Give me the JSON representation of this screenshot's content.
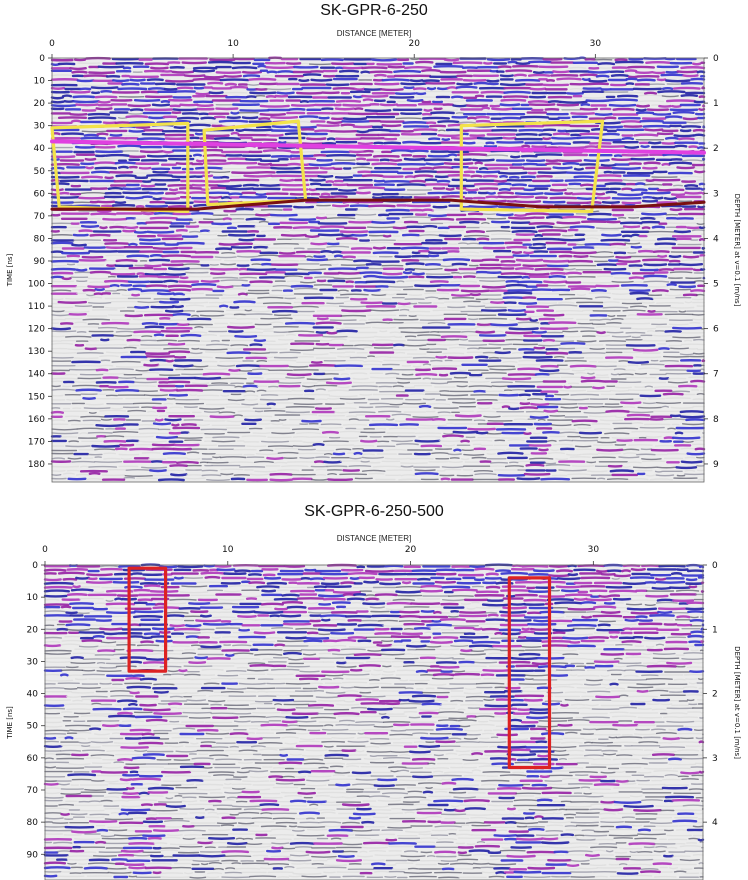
{
  "chart_data": [
    {
      "type": "heatmap",
      "title": "SK-GPR-6-250",
      "xlabel": "DISTANCE [METER]",
      "ylabel": "TIME [ns]",
      "y2label": "DEPTH [METER] at v=0.1 [m/ns]",
      "xlim": [
        0,
        36
      ],
      "ylim": [
        188,
        0
      ],
      "y2lim": [
        9.4,
        0
      ],
      "xticks": [
        0,
        10,
        20,
        30
      ],
      "yticks": [
        0,
        10,
        20,
        30,
        40,
        50,
        60,
        70,
        80,
        90,
        100,
        110,
        120,
        130,
        140,
        150,
        160,
        170,
        180
      ],
      "y2ticks": [
        0,
        1,
        2,
        3,
        4,
        5,
        6,
        7,
        8,
        9
      ],
      "annotations": [
        {
          "shape": "polygon",
          "color": "#f2e24a",
          "points": [
            [
              0,
              31
            ],
            [
              7.5,
              29
            ],
            [
              7.5,
              68
            ],
            [
              0.4,
              66
            ]
          ]
        },
        {
          "shape": "polygon",
          "color": "#f2e24a",
          "points": [
            [
              8.4,
              32
            ],
            [
              13.6,
              28
            ],
            [
              14.0,
              63
            ],
            [
              8.6,
              65
            ]
          ]
        },
        {
          "shape": "polygon",
          "color": "#f2e24a",
          "points": [
            [
              22.6,
              30
            ],
            [
              30.4,
              28
            ],
            [
              29.8,
              68
            ],
            [
              22.6,
              67
            ]
          ]
        },
        {
          "shape": "line",
          "color": "#e040e0",
          "points": [
            [
              0,
              37
            ],
            [
              36,
              42
            ]
          ]
        },
        {
          "shape": "line",
          "color": "#7a1010",
          "points": [
            [
              0,
              67
            ],
            [
              8,
              67
            ],
            [
              14,
              63
            ],
            [
              22,
              63
            ],
            [
              27,
              66
            ],
            [
              32,
              66
            ],
            [
              36,
              64
            ]
          ]
        }
      ]
    },
    {
      "type": "heatmap",
      "title": "SK-GPR-6-250-500",
      "xlabel": "DISTANCE [METER]",
      "ylabel": "TIME [ns]",
      "y2label": "DEPTH [METER] at v=0.1 [m/ns]",
      "xlim": [
        0,
        36
      ],
      "ylim": [
        98,
        0
      ],
      "y2lim": [
        4.9,
        0
      ],
      "xticks": [
        0,
        10,
        20,
        30
      ],
      "yticks": [
        0,
        10,
        20,
        30,
        40,
        50,
        60,
        70,
        80,
        90
      ],
      "y2ticks": [
        0,
        1,
        2,
        3,
        4
      ],
      "annotations": [
        {
          "shape": "polygon",
          "color": "#dd2222",
          "points": [
            [
              4.6,
              1
            ],
            [
              6.6,
              1
            ],
            [
              6.6,
              33
            ],
            [
              4.6,
              33
            ]
          ]
        },
        {
          "shape": "polygon",
          "color": "#dd2222",
          "points": [
            [
              25.4,
              4
            ],
            [
              27.6,
              4
            ],
            [
              27.6,
              63
            ],
            [
              25.4,
              63
            ]
          ]
        }
      ]
    }
  ]
}
